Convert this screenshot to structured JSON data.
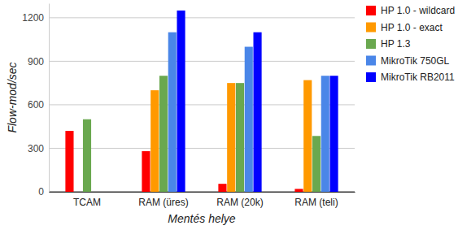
{
  "chart_data": {
    "type": "bar",
    "x_label": "Mentés helye",
    "y_label": "Flow-mod/sec",
    "categories": [
      "TCAM",
      "RAM (üres)",
      "RAM (20k)",
      "RAM (teli)"
    ],
    "series": [
      {
        "name": "HP 1.0 - wildcard",
        "color": "#ff0000",
        "values": [
          420,
          280,
          55,
          20
        ]
      },
      {
        "name": "HP 1.0 - exact",
        "color": "#ff9900",
        "values": [
          null,
          700,
          750,
          770
        ]
      },
      {
        "name": "HP 1.3",
        "color": "#6aa84f",
        "values": [
          500,
          800,
          750,
          385
        ]
      },
      {
        "name": "MikroTik 750GL",
        "color": "#4a86e8",
        "values": [
          null,
          1100,
          1000,
          800
        ]
      },
      {
        "name": "MikroTik RB2011",
        "color": "#0000ff",
        "values": [
          null,
          1250,
          1100,
          800
        ]
      }
    ],
    "ylim": [
      0,
      1300
    ],
    "yticks": [
      0,
      300,
      600,
      900,
      1200
    ],
    "grid": true,
    "legend": "right"
  }
}
